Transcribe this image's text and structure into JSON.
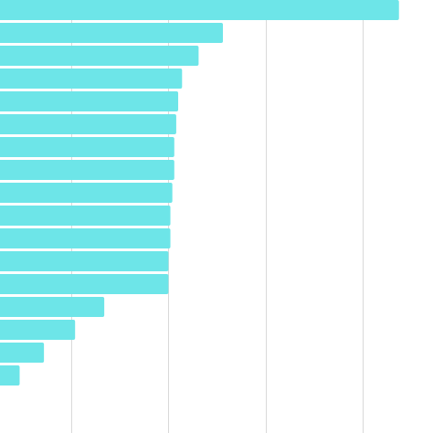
{
  "chart_data": {
    "type": "barh",
    "categories": [
      null,
      null,
      null,
      null,
      null,
      null,
      null,
      null,
      null,
      null,
      null,
      null,
      null,
      null,
      null,
      null,
      null
    ],
    "values": [
      4.37,
      2.56,
      2.31,
      2.14,
      2.1,
      2.08,
      2.06,
      2.06,
      2.04,
      2.02,
      2.02,
      2.0,
      2.0,
      1.34,
      1.04,
      0.72,
      0.47
    ],
    "color": "#6de5e8",
    "xlim": [
      0.268,
      4.72
    ],
    "xticks": [
      1,
      2,
      3,
      4
    ],
    "grid": true
  }
}
